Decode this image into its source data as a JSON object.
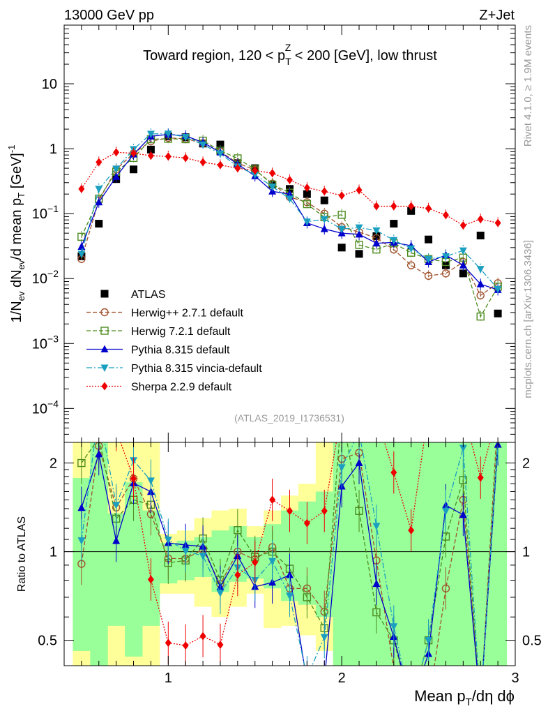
{
  "header": {
    "left": "13000 GeV pp",
    "right": "Z+Jet"
  },
  "side_labels": {
    "rivet": "Rivet 4.1.0, ≥ 1.9M events",
    "mcplots": "mcplots.cern.ch [arXiv:1306.3436]"
  },
  "analysis_tag": "(ATLAS_2019_I1736531)",
  "chart_data": [
    {
      "type": "scatter",
      "title": "Toward region, 120 < p_T^Z < 200 [GeV], low thrust",
      "title_parts": {
        "pre": "Toward region, 120 < p",
        "sub": "T",
        "sup": "Z",
        "post": " < 200 [GeV], low thrust"
      },
      "xlabel": "Mean p_T/dη dϕ",
      "xlabel_parts": {
        "pre": "Mean p",
        "sub": "T",
        "post": "/dη dϕ"
      },
      "ylabel": "1/N_ev dN_ev/d mean p_T [GeV]^-1",
      "yscale": "log",
      "xlim": [
        0.4,
        3.0
      ],
      "ylim": [
        3e-05,
        80
      ],
      "xticks": [
        1,
        2,
        3
      ],
      "yticks": [
        {
          "v": 0.0001,
          "b": "10",
          "e": "−4"
        },
        {
          "v": 0.001,
          "b": "10",
          "e": "−3"
        },
        {
          "v": 0.01,
          "b": "10",
          "e": "−2"
        },
        {
          "v": 0.1,
          "b": "10",
          "e": "−1"
        },
        {
          "v": 1,
          "b": "1",
          "e": ""
        },
        {
          "v": 10,
          "b": "10",
          "e": ""
        }
      ],
      "x": [
        0.5,
        0.6,
        0.7,
        0.8,
        0.9,
        1.0,
        1.1,
        1.2,
        1.3,
        1.4,
        1.5,
        1.6,
        1.7,
        1.8,
        1.9,
        2.0,
        2.1,
        2.2,
        2.3,
        2.4,
        2.5,
        2.6,
        2.7,
        2.8,
        2.9
      ],
      "series": [
        {
          "name": "ATLAS",
          "color": "#000000",
          "marker": "square-filled",
          "line": "none",
          "values": [
            0.022,
            0.07,
            0.34,
            0.48,
            0.97,
            1.55,
            1.5,
            1.2,
            1.16,
            0.6,
            0.5,
            0.28,
            0.24,
            0.2,
            0.16,
            0.03,
            0.024,
            0.045,
            0.07,
            0.11,
            0.04,
            0.016,
            0.012,
            0.046,
            0.0029
          ]
        },
        {
          "name": "Herwig++ 2.7.1 default",
          "color": "#a0522d",
          "marker": "circle-open",
          "line": "dashed",
          "values": [
            0.02,
            0.16,
            0.48,
            0.85,
            1.3,
            1.47,
            1.42,
            1.22,
            0.9,
            0.6,
            0.47,
            0.29,
            0.18,
            0.15,
            0.1,
            0.062,
            0.052,
            0.042,
            0.028,
            0.016,
            0.011,
            0.012,
            0.018,
            0.0055,
            0.0085
          ]
        },
        {
          "name": "Herwig 7.2.1 default",
          "color": "#4c8b1f",
          "marker": "square-open",
          "line": "dashed",
          "values": [
            0.044,
            0.17,
            0.44,
            0.72,
            1.4,
            1.42,
            1.4,
            1.33,
            0.93,
            0.71,
            0.48,
            0.28,
            0.21,
            0.14,
            0.088,
            0.096,
            0.033,
            0.028,
            0.035,
            0.025,
            0.02,
            0.018,
            0.021,
            0.0026,
            0.0075
          ]
        },
        {
          "name": "Pythia 8.315 default",
          "color": "#0000cc",
          "marker": "triangle-up",
          "line": "solid",
          "values": [
            0.031,
            0.15,
            0.37,
            0.82,
            1.55,
            1.66,
            1.58,
            1.25,
            0.88,
            0.58,
            0.38,
            0.22,
            0.2,
            0.072,
            0.058,
            0.05,
            0.048,
            0.035,
            0.036,
            0.032,
            0.018,
            0.023,
            0.016,
            0.0082,
            0.0067
          ]
        },
        {
          "name": "Pythia 8.315 vincia-default",
          "color": "#1b9fc0",
          "marker": "triangle-down",
          "line": "dashdot",
          "values": [
            0.024,
            0.24,
            0.49,
            0.98,
            1.69,
            1.7,
            1.51,
            1.16,
            0.84,
            0.53,
            0.4,
            0.26,
            0.17,
            0.075,
            0.082,
            0.058,
            0.061,
            0.055,
            0.039,
            0.029,
            0.02,
            0.022,
            0.027,
            0.014,
            0.0069
          ]
        },
        {
          "name": "Sherpa 2.2.9 default",
          "color": "#ee0000",
          "marker": "diamond",
          "line": "dotted",
          "values": [
            0.24,
            0.62,
            0.88,
            0.85,
            0.78,
            0.76,
            0.72,
            0.62,
            0.56,
            0.5,
            0.46,
            0.42,
            0.33,
            0.25,
            0.22,
            0.19,
            0.23,
            0.13,
            0.13,
            0.13,
            0.12,
            0.095,
            0.066,
            0.082,
            0.072
          ]
        }
      ]
    },
    {
      "type": "ratio",
      "ylabel": "Ratio to ATLAS",
      "yscale": "log",
      "ylim": [
        0.41,
        2.35
      ],
      "yticks": [
        0.5,
        1,
        2
      ],
      "reference": 1,
      "band_green": [
        [
          0.46,
          1.78
        ],
        [
          0.36,
          2.35
        ],
        [
          0.56,
          1.35
        ],
        [
          0.44,
          1.72
        ],
        [
          0.56,
          1.38
        ],
        [
          0.78,
          1.07
        ],
        [
          0.8,
          1.09
        ],
        [
          0.82,
          1.12
        ],
        [
          0.73,
          1.18
        ],
        [
          0.79,
          1.22
        ],
        [
          0.81,
          1.12
        ],
        [
          0.75,
          1.24
        ],
        [
          0.68,
          1.38
        ],
        [
          0.66,
          1.48
        ],
        [
          0.6,
          1.6
        ],
        [
          0.36,
          2.35
        ],
        [
          0.36,
          2.35
        ],
        [
          0.36,
          2.35
        ],
        [
          0.36,
          2.35
        ],
        [
          0.36,
          2.35
        ],
        [
          0.36,
          2.35
        ],
        [
          0.36,
          2.35
        ],
        [
          0.36,
          2.35
        ],
        [
          0.36,
          2.35
        ],
        [
          0.36,
          2.35
        ]
      ],
      "band_yellow": [
        [
          0.36,
          2.35
        ],
        [
          0.36,
          2.35
        ],
        [
          0.36,
          2.35
        ],
        [
          0.36,
          2.35
        ],
        [
          0.36,
          2.35
        ],
        [
          0.72,
          1.15
        ],
        [
          0.72,
          1.18
        ],
        [
          0.65,
          1.3
        ],
        [
          0.6,
          1.38
        ],
        [
          0.65,
          1.4
        ],
        [
          0.72,
          1.22
        ],
        [
          0.55,
          1.38
        ],
        [
          0.56,
          1.55
        ],
        [
          0.52,
          1.7
        ],
        [
          0.46,
          2.35
        ],
        [
          0.36,
          2.35
        ],
        [
          0.36,
          2.35
        ],
        [
          0.36,
          2.35
        ],
        [
          0.36,
          2.35
        ],
        [
          0.36,
          2.35
        ],
        [
          0.36,
          2.35
        ],
        [
          0.36,
          2.35
        ],
        [
          0.36,
          2.35
        ],
        [
          0.36,
          2.35
        ],
        [
          0.36,
          2.35
        ]
      ]
    }
  ]
}
